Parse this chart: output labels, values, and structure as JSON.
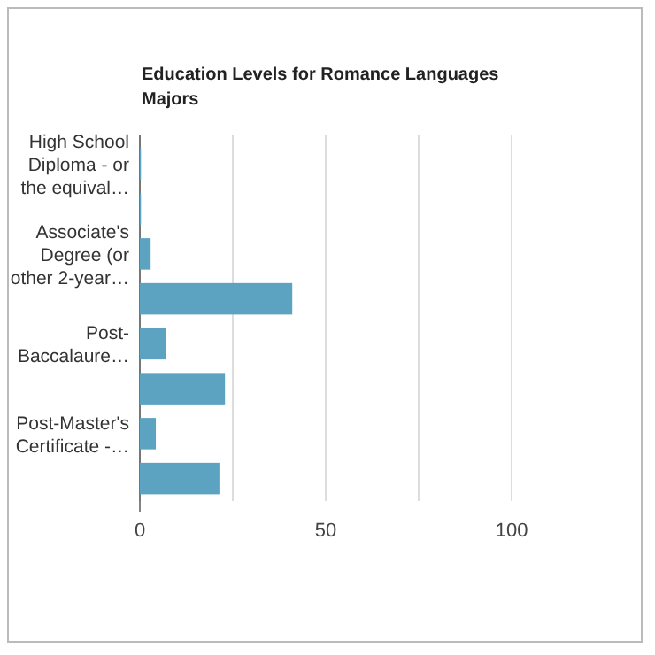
{
  "chart_data": {
    "type": "bar",
    "orientation": "horizontal",
    "title": "Education Levels for Romance Languages Majors",
    "categories": [
      "High School Diploma - or the equival…",
      null,
      "Associate's Degree (or other 2-year…",
      null,
      "Post-Baccalaure…",
      null,
      "Post-Master's Certificate -…",
      null
    ],
    "values": [
      0.3,
      0.3,
      2.9,
      41,
      7.1,
      22.9,
      4.3,
      21.4
    ],
    "color": "#5ba3c0",
    "xlim": [
      0,
      100
    ],
    "xticks": [
      0,
      {
        "value": 25,
        "label": null
      },
      50,
      {
        "value": 75,
        "label": null
      },
      100
    ],
    "grid": "x"
  }
}
